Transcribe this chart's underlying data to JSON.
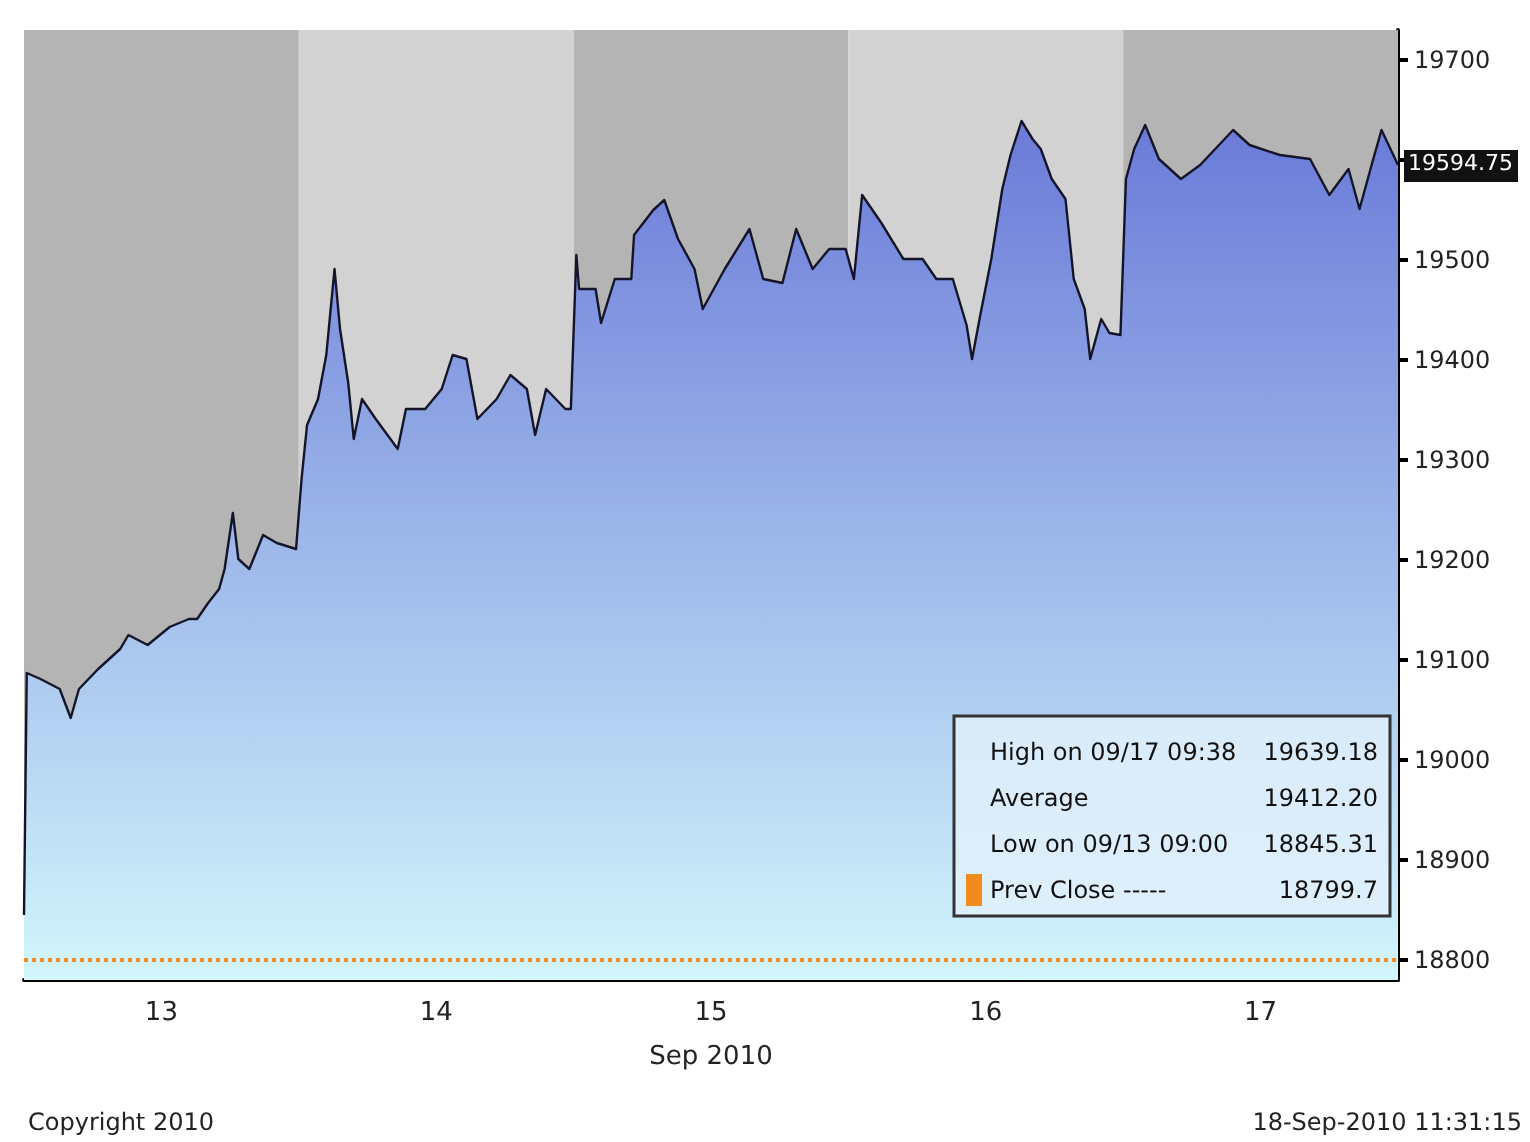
{
  "chart_data": {
    "type": "area",
    "xlabel": "Sep 2010",
    "x": [
      12.5,
      12.51,
      12.56,
      12.63,
      12.67,
      12.7,
      12.77,
      12.85,
      12.88,
      12.95,
      13.03,
      13.1,
      13.13,
      13.17,
      13.21,
      13.23,
      13.26,
      13.28,
      13.32,
      13.37,
      13.42,
      13.49,
      13.51,
      13.53,
      13.57,
      13.6,
      13.63,
      13.65,
      13.68,
      13.7,
      13.73,
      13.78,
      13.86,
      13.89,
      13.96,
      14.02,
      14.06,
      14.11,
      14.15,
      14.22,
      14.27,
      14.33,
      14.36,
      14.4,
      14.47,
      14.49,
      14.51,
      14.52,
      14.58,
      14.6,
      14.65,
      14.71,
      14.72,
      14.79,
      14.83,
      14.88,
      14.94,
      14.97,
      15.05,
      15.14,
      15.19,
      15.26,
      15.31,
      15.37,
      15.43,
      15.49,
      15.52,
      15.55,
      15.62,
      15.7,
      15.77,
      15.82,
      15.88,
      15.93,
      15.95,
      15.98,
      16.02,
      16.06,
      16.09,
      16.13,
      16.17,
      16.2,
      16.24,
      16.29,
      16.32,
      16.36,
      16.38,
      16.42,
      16.45,
      16.49,
      16.51,
      16.54,
      16.58,
      16.63,
      16.71,
      16.78,
      16.9,
      16.96,
      17.07,
      17.18,
      17.25,
      17.32,
      17.36,
      17.41,
      17.44,
      17.5
    ],
    "series": [
      {
        "color": "#6a7ad8",
        "values": [
          18845,
          19087,
          19081,
          19071,
          19042,
          19071,
          19091,
          19111,
          19125,
          19115,
          19133,
          19141,
          19141,
          19157,
          19171,
          19191,
          19247,
          19201,
          19191,
          19225,
          19217,
          19211,
          19281,
          19335,
          19361,
          19405,
          19491,
          19431,
          19377,
          19321,
          19361,
          19341,
          19311,
          19351,
          19351,
          19371,
          19405,
          19401,
          19341,
          19361,
          19385,
          19371,
          19325,
          19371,
          19351,
          19351,
          19505,
          19471,
          19471,
          19437,
          19481,
          19481,
          19525,
          19550,
          19560,
          19521,
          19491,
          19451,
          19491,
          19531,
          19481,
          19477,
          19531,
          19491,
          19511,
          19511,
          19481,
          19565,
          19537,
          19501,
          19501,
          19481,
          19481,
          19435,
          19401,
          19445,
          19501,
          19571,
          19605,
          19639,
          19621,
          19611,
          19581,
          19561,
          19481,
          19451,
          19401,
          19441,
          19427,
          19425,
          19581,
          19611,
          19635,
          19601,
          19581,
          19595,
          19630,
          19615,
          19605,
          19601,
          19565,
          19591,
          19551,
          19601,
          19630,
          19595
        ]
      }
    ],
    "xlim": [
      12.5,
      17.5
    ],
    "xticks": [
      13,
      14,
      15,
      16,
      17
    ],
    "ylim": [
      18780,
      19730
    ],
    "yticks": [
      18800,
      18900,
      19000,
      19100,
      19200,
      19300,
      19400,
      19500,
      {
        "value": 19600,
        "label": null
      },
      19700
    ],
    "grid": false,
    "marker": "none",
    "line_style": "solid",
    "bands": [
      {
        "axis": "x",
        "from": 12.5,
        "to": 13.5,
        "color": "#b4b4b4"
      },
      {
        "axis": "x",
        "from": 13.5,
        "to": 14.5,
        "color": "#d2d2d2"
      },
      {
        "axis": "x",
        "from": 14.5,
        "to": 15.5,
        "color": "#b4b4b4"
      },
      {
        "axis": "x",
        "from": 15.5,
        "to": 16.5,
        "color": "#d2d2d2"
      },
      {
        "axis": "x",
        "from": 16.5,
        "to": 17.5,
        "color": "#b4b4b4"
      }
    ],
    "ref_lines": [
      {
        "axis": "y",
        "value": 18799.7,
        "label": "Prev Close -----  18799.7",
        "color": "#f08c1e",
        "line_style": "dotted"
      }
    ],
    "annotations": [
      "High on 09/17 09:38  19639.18",
      "Average  19412.20",
      "Low on 09/13 09:00  18845.31",
      {
        "text": "19594.75",
        "x": 17.5,
        "y": 19594.75
      },
      "18-Sep-2010 11:31:15",
      "Copyright 2010"
    ]
  }
}
